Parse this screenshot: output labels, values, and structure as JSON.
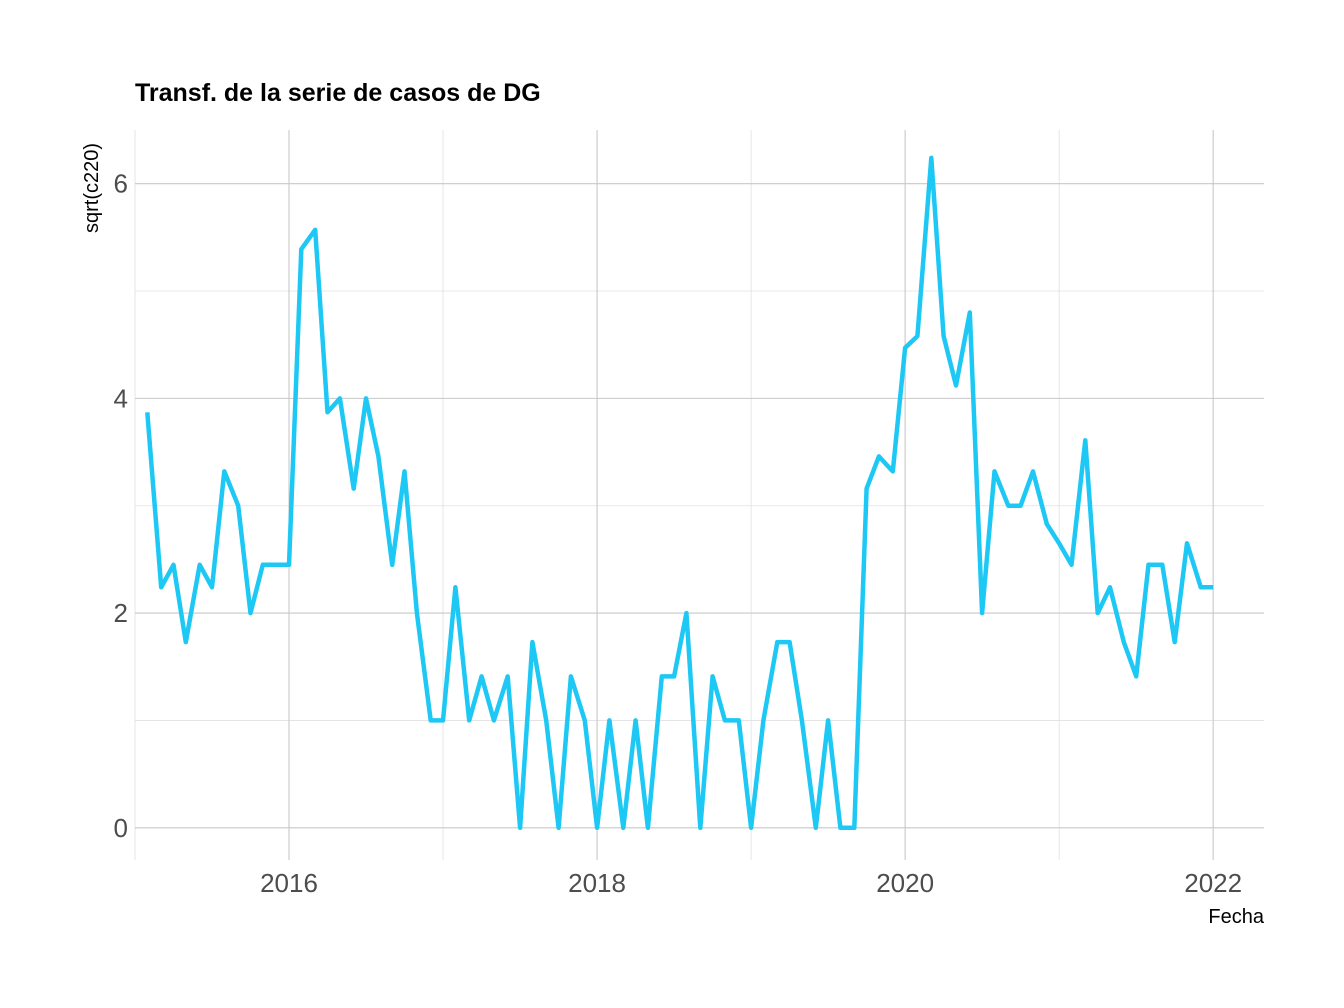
{
  "chart_data": {
    "type": "line",
    "title": "Transf. de la serie de casos de DG",
    "xlabel": "Fecha",
    "ylabel": "sqrt(c220)",
    "xlim": [
      2015.0,
      2022.33
    ],
    "ylim": [
      -0.3,
      6.5
    ],
    "x_ticks": [
      2016,
      2018,
      2020,
      2022
    ],
    "x_tick_labels": [
      "2016",
      "2018",
      "2020",
      "2022"
    ],
    "y_ticks": [
      0,
      2,
      4,
      6
    ],
    "y_tick_labels": [
      "0",
      "2",
      "4",
      "6"
    ],
    "grid": true,
    "legend": "none",
    "series": [
      {
        "color": "#1ec8f5",
        "x": [
          2015.08,
          2015.17,
          2015.25,
          2015.33,
          2015.42,
          2015.5,
          2015.58,
          2015.67,
          2015.75,
          2015.83,
          2015.92,
          2016.0,
          2016.08,
          2016.17,
          2016.25,
          2016.33,
          2016.42,
          2016.5,
          2016.58,
          2016.67,
          2016.75,
          2016.83,
          2016.92,
          2017.0,
          2017.08,
          2017.17,
          2017.25,
          2017.33,
          2017.42,
          2017.5,
          2017.58,
          2017.67,
          2017.75,
          2017.83,
          2017.92,
          2018.0,
          2018.08,
          2018.17,
          2018.25,
          2018.33,
          2018.42,
          2018.5,
          2018.58,
          2018.67,
          2018.75,
          2018.83,
          2018.92,
          2019.0,
          2019.08,
          2019.17,
          2019.25,
          2019.33,
          2019.42,
          2019.5,
          2019.58,
          2019.67,
          2019.75,
          2019.83,
          2019.92,
          2020.0,
          2020.08,
          2020.17,
          2020.25,
          2020.33,
          2020.42,
          2020.5,
          2020.58,
          2020.67,
          2020.75,
          2020.83,
          2020.92,
          2021.0,
          2021.08,
          2021.17,
          2021.25,
          2021.33,
          2021.42,
          2021.5,
          2021.58,
          2021.67,
          2021.75,
          2021.83,
          2021.92,
          2022.0
        ],
        "values": [
          3.87,
          2.24,
          2.45,
          1.73,
          2.45,
          2.24,
          3.32,
          3.0,
          2.0,
          2.45,
          2.45,
          2.45,
          5.39,
          5.57,
          3.87,
          4.0,
          3.16,
          4.0,
          3.46,
          2.45,
          3.32,
          2.0,
          1.0,
          1.0,
          2.24,
          1.0,
          1.41,
          1.0,
          1.41,
          0.0,
          1.73,
          1.0,
          0.0,
          1.41,
          1.0,
          0.0,
          1.0,
          0.0,
          1.0,
          0.0,
          1.41,
          1.41,
          2.0,
          0.0,
          1.41,
          1.0,
          1.0,
          0.0,
          1.0,
          1.73,
          1.73,
          1.0,
          0.0,
          1.0,
          0.0,
          0.0,
          3.16,
          3.46,
          3.32,
          4.47,
          4.58,
          6.24,
          4.58,
          4.12,
          4.8,
          2.0,
          3.32,
          3.0,
          3.0,
          3.32,
          2.83,
          2.65,
          2.45,
          3.61,
          2.0,
          2.24,
          1.73,
          1.41,
          2.45,
          2.45,
          1.73,
          2.65,
          2.24,
          2.24
        ]
      }
    ]
  }
}
